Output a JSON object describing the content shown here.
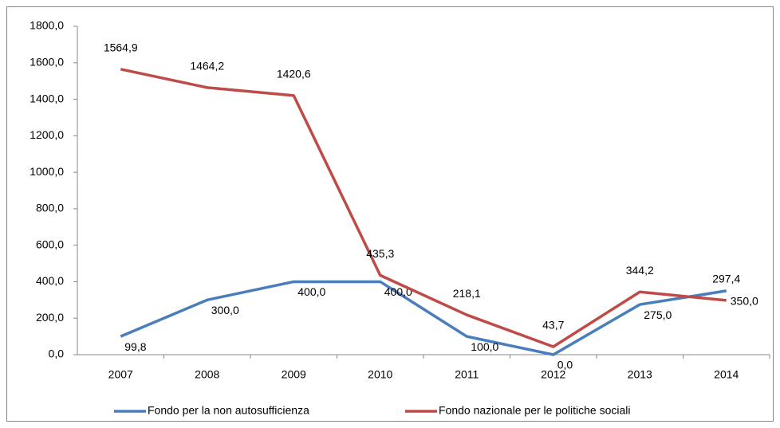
{
  "chart_data": {
    "type": "line",
    "categories": [
      "2007",
      "2008",
      "2009",
      "2010",
      "2011",
      "2012",
      "2013",
      "2014"
    ],
    "series": [
      {
        "name": "Fondo per la non autosufficienza",
        "color": "#4a7ebb",
        "values": [
          99.8,
          300.0,
          400.0,
          400.0,
          100.0,
          0.0,
          275.0,
          350.0
        ],
        "value_labels": [
          "99,8",
          "300,0",
          "400,0",
          "400,0",
          "100,0",
          "0,0",
          "275,0",
          "350,0"
        ]
      },
      {
        "name": "Fondo nazionale per le politiche sociali",
        "color": "#be4b48",
        "values": [
          1564.9,
          1464.2,
          1420.6,
          435.3,
          218.1,
          43.7,
          344.2,
          297.4
        ],
        "value_labels": [
          "1564,9",
          "1464,2",
          "1420,6",
          "435,3",
          "218,1",
          "43,7",
          "344,2",
          "297,4"
        ]
      }
    ],
    "ylim": [
      0,
      1800
    ],
    "yticks": [
      {
        "value": 0,
        "label": "0,0"
      },
      {
        "value": 200,
        "label": "200,0"
      },
      {
        "value": 400,
        "label": "400,0"
      },
      {
        "value": 600,
        "label": "600,0"
      },
      {
        "value": 800,
        "label": "800,0"
      },
      {
        "value": 1000,
        "label": "1000,0"
      },
      {
        "value": 1200,
        "label": "1200,0"
      },
      {
        "value": 1400,
        "label": "1400,0"
      },
      {
        "value": 1600,
        "label": "1600,0"
      },
      {
        "value": 1800,
        "label": "1800,0"
      }
    ],
    "grid": false,
    "legend": "bottom"
  }
}
